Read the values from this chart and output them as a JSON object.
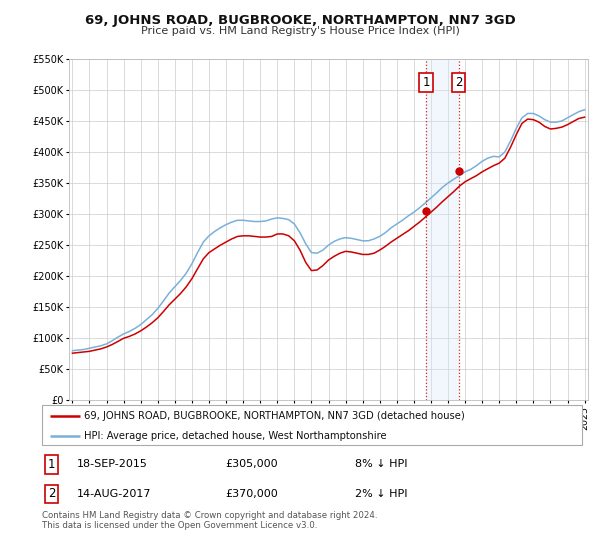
{
  "title": "69, JOHNS ROAD, BUGBROOKE, NORTHAMPTON, NN7 3GD",
  "subtitle": "Price paid vs. HM Land Registry's House Price Index (HPI)",
  "legend_line1": "69, JOHNS ROAD, BUGBROOKE, NORTHAMPTON, NN7 3GD (detached house)",
  "legend_line2": "HPI: Average price, detached house, West Northamptonshire",
  "transaction1_date": "18-SEP-2015",
  "transaction1_price": "£305,000",
  "transaction1_hpi": "8% ↓ HPI",
  "transaction2_date": "14-AUG-2017",
  "transaction2_price": "£370,000",
  "transaction2_hpi": "2% ↓ HPI",
  "footer": "Contains HM Land Registry data © Crown copyright and database right 2024.\nThis data is licensed under the Open Government Licence v3.0.",
  "ylim": [
    0,
    550000
  ],
  "yticks": [
    0,
    50000,
    100000,
    150000,
    200000,
    250000,
    300000,
    350000,
    400000,
    450000,
    500000,
    550000
  ],
  "background_color": "#ffffff",
  "grid_color": "#cccccc",
  "hpi_line_color": "#7ab0d8",
  "price_line_color": "#cc0000",
  "transaction_shade_color": "#d8eaf7",
  "transaction1_x": 2015.72,
  "transaction2_x": 2017.62,
  "sale1_value": 305000,
  "sale2_value": 370000,
  "years_hpi": [
    1995.0,
    1995.33,
    1995.67,
    1996.0,
    1996.33,
    1996.67,
    1997.0,
    1997.33,
    1997.67,
    1998.0,
    1998.33,
    1998.67,
    1999.0,
    1999.33,
    1999.67,
    2000.0,
    2000.33,
    2000.67,
    2001.0,
    2001.33,
    2001.67,
    2002.0,
    2002.33,
    2002.67,
    2003.0,
    2003.33,
    2003.67,
    2004.0,
    2004.33,
    2004.67,
    2005.0,
    2005.33,
    2005.67,
    2006.0,
    2006.33,
    2006.67,
    2007.0,
    2007.33,
    2007.67,
    2008.0,
    2008.33,
    2008.67,
    2009.0,
    2009.33,
    2009.67,
    2010.0,
    2010.33,
    2010.67,
    2011.0,
    2011.33,
    2011.67,
    2012.0,
    2012.33,
    2012.67,
    2013.0,
    2013.33,
    2013.67,
    2014.0,
    2014.33,
    2014.67,
    2015.0,
    2015.33,
    2015.67,
    2016.0,
    2016.33,
    2016.67,
    2017.0,
    2017.33,
    2017.67,
    2018.0,
    2018.33,
    2018.67,
    2019.0,
    2019.33,
    2019.67,
    2020.0,
    2020.33,
    2020.67,
    2021.0,
    2021.33,
    2021.67,
    2022.0,
    2022.33,
    2022.67,
    2023.0,
    2023.33,
    2023.67,
    2024.0,
    2024.33,
    2024.67,
    2025.0
  ],
  "hpi_vals": [
    80000,
    81000,
    82000,
    84000,
    86000,
    88000,
    91000,
    96000,
    102000,
    107000,
    111000,
    116000,
    122000,
    130000,
    138000,
    148000,
    160000,
    173000,
    183000,
    193000,
    205000,
    220000,
    238000,
    255000,
    265000,
    272000,
    278000,
    283000,
    287000,
    290000,
    290000,
    289000,
    288000,
    288000,
    289000,
    292000,
    294000,
    293000,
    291000,
    284000,
    270000,
    252000,
    238000,
    237000,
    242000,
    250000,
    256000,
    260000,
    262000,
    261000,
    259000,
    257000,
    257000,
    260000,
    264000,
    270000,
    278000,
    284000,
    290000,
    297000,
    303000,
    310000,
    318000,
    326000,
    334000,
    343000,
    350000,
    356000,
    362000,
    368000,
    372000,
    378000,
    385000,
    390000,
    393000,
    392000,
    400000,
    418000,
    438000,
    455000,
    462000,
    462000,
    458000,
    452000,
    448000,
    448000,
    450000,
    455000,
    460000,
    465000,
    468000
  ],
  "price_vals": [
    76000,
    77000,
    78000,
    79000,
    81000,
    83000,
    86000,
    90000,
    95000,
    100000,
    103000,
    107000,
    112000,
    118000,
    125000,
    133000,
    143000,
    154000,
    163000,
    172000,
    183000,
    196000,
    212000,
    228000,
    238000,
    244000,
    250000,
    255000,
    260000,
    264000,
    265000,
    265000,
    264000,
    263000,
    263000,
    264000,
    268000,
    268000,
    265000,
    257000,
    242000,
    222000,
    209000,
    210000,
    217000,
    226000,
    232000,
    237000,
    240000,
    239000,
    237000,
    235000,
    235000,
    237000,
    242000,
    248000,
    255000,
    261000,
    267000,
    273000,
    280000,
    287000,
    295000,
    303000,
    311000,
    320000,
    328000,
    336000,
    345000,
    352000,
    357000,
    362000,
    368000,
    373000,
    378000,
    382000,
    390000,
    408000,
    428000,
    446000,
    453000,
    452000,
    448000,
    441000,
    437000,
    438000,
    440000,
    444000,
    449000,
    454000,
    456000
  ]
}
